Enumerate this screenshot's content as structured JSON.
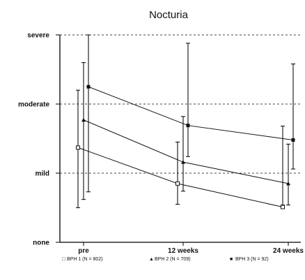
{
  "chart_data": {
    "type": "line",
    "title": "Nocturia",
    "xlabel": "",
    "ylabel": "",
    "categories": [
      "pre",
      "12 weeks",
      "24 weeks"
    ],
    "y_ticks": [
      {
        "value": 0,
        "label": "none"
      },
      {
        "value": 1,
        "label": "mild"
      },
      {
        "value": 2,
        "label": "moderate"
      },
      {
        "value": 3,
        "label": "severe"
      }
    ],
    "ylim": [
      0,
      3
    ],
    "grid": "dashed horizontal at mild, moderate, severe",
    "error_bars": true,
    "series": [
      {
        "name": "BPH 1 (N = 802)",
        "marker": "open-square",
        "marker_label": "□",
        "values": [
          1.37,
          0.85,
          0.51
        ],
        "err_low": [
          0.5,
          0.55,
          0.54
        ],
        "err_high": [
          2.2,
          1.45,
          1.68
        ]
      },
      {
        "name": "BPH 2 (N = 709)",
        "marker": "triangle",
        "marker_label": "▲",
        "values": [
          1.77,
          1.16,
          0.85
        ],
        "err_low": [
          0.62,
          0.74,
          0.54
        ],
        "err_high": [
          2.6,
          1.82,
          1.42
        ]
      },
      {
        "name": "BPH 3 (N = 92)",
        "marker": "filled-square",
        "marker_label": "■",
        "values": [
          2.25,
          1.69,
          1.48
        ],
        "err_low": [
          0.73,
          1.24,
          1.06
        ],
        "err_high": [
          3.0,
          2.88,
          2.58
        ]
      }
    ],
    "legend": "bottom"
  }
}
